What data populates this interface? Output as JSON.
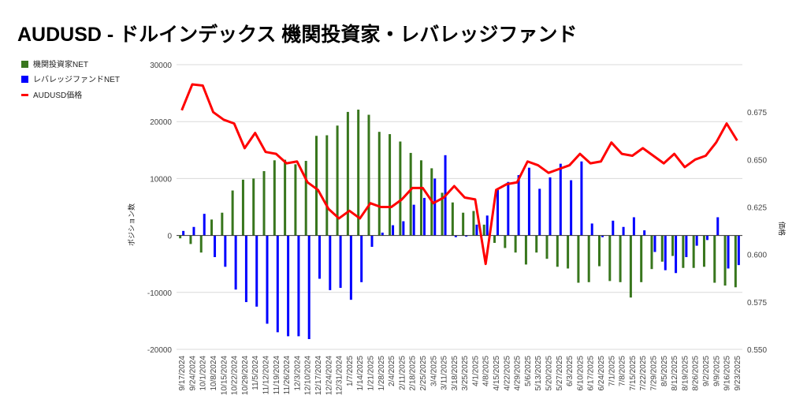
{
  "chart_data": {
    "type": "bar+line",
    "title": "AUDUSD - ドルインデックス 機関投資家・レバレッジファンド",
    "ylabel_left": "ポジション数",
    "ylabel_right": "価格",
    "ylim_left": [
      -20000,
      30000
    ],
    "yticks_left": [
      "30000",
      "20000",
      "10000",
      "0",
      "-10000",
      "-20000"
    ],
    "ylim_right": [
      0.55,
      0.7
    ],
    "yticks_right": [
      "0.675",
      "0.650",
      "0.625",
      "0.600",
      "0.575",
      "0.550"
    ],
    "legend_position": "top-left",
    "categories": [
      "9/17/2024",
      "9/24/2024",
      "10/1/2024",
      "10/8/2024",
      "10/15/2024",
      "10/22/2024",
      "10/29/2024",
      "11/5/2024",
      "11/12/2024",
      "11/19/2024",
      "11/26/2024",
      "12/3/2024",
      "12/10/2024",
      "12/17/2024",
      "12/24/2024",
      "12/31/2024",
      "1/7/2025",
      "1/14/2025",
      "1/21/2025",
      "1/28/2025",
      "2/4/2025",
      "2/11/2025",
      "2/18/2025",
      "2/25/2025",
      "3/4/2025",
      "3/11/2025",
      "3/18/2025",
      "3/25/2025",
      "4/1/2025",
      "4/8/2025",
      "4/15/2025",
      "4/22/2025",
      "4/29/2025",
      "5/6/2025",
      "5/13/2025",
      "5/20/2025",
      "5/27/2025",
      "6/3/2025",
      "6/10/2025",
      "6/17/2025",
      "6/24/2025",
      "7/1/2025",
      "7/8/2025",
      "7/15/2025",
      "7/22/2025",
      "7/29/2025",
      "8/5/2025",
      "8/12/2025",
      "8/19/2025",
      "8/26/2025",
      "9/2/2025",
      "9/9/2025",
      "9/16/2025",
      "9/23/2025"
    ],
    "series": [
      {
        "name": "機関投資家NET",
        "type": "bar",
        "axis": "left",
        "color": "#38761d",
        "values": [
          -500,
          -1500,
          -3000,
          2800,
          4000,
          7900,
          9800,
          10000,
          11300,
          13200,
          13300,
          12500,
          13100,
          17500,
          17600,
          19300,
          21700,
          22100,
          21200,
          18200,
          17800,
          16500,
          14500,
          13200,
          11800,
          7500,
          5800,
          4000,
          4300,
          1900,
          -1300,
          -2200,
          -3000,
          -5100,
          -3000,
          -4100,
          -5500,
          -5800,
          -8300,
          -8200,
          -5400,
          -8000,
          -8200,
          -10900,
          -8200,
          -5900,
          -4600,
          -3600,
          -5700,
          -5700,
          -5500,
          -8300,
          -8800,
          -9100
        ]
      },
      {
        "name": "レバレッジファンドNET",
        "type": "bar",
        "axis": "left",
        "color": "#0000ff",
        "values": [
          800,
          1500,
          3800,
          -3800,
          -5500,
          -9500,
          -11700,
          -12500,
          -15500,
          -17000,
          -17700,
          -17700,
          -18200,
          -7600,
          -9600,
          -9200,
          -11300,
          -8200,
          -2000,
          500,
          1800,
          2500,
          5400,
          6600,
          10000,
          14100,
          -300,
          -200,
          1900,
          3500,
          8000,
          9400,
          10600,
          11900,
          8200,
          10200,
          12600,
          9700,
          13000,
          2100,
          -300,
          2600,
          1500,
          3200,
          900,
          -2900,
          -6100,
          -6600,
          -3800,
          -1800,
          -800,
          3200,
          -5800,
          -5200
        ]
      },
      {
        "name": "AUDUSD価格",
        "type": "line",
        "axis": "right",
        "color": "#ff0000",
        "values": [
          0.676,
          0.6896,
          0.689,
          0.675,
          0.671,
          0.669,
          0.656,
          0.664,
          0.654,
          0.653,
          0.648,
          0.649,
          0.638,
          0.634,
          0.624,
          0.619,
          0.623,
          0.619,
          0.627,
          0.625,
          0.625,
          0.629,
          0.635,
          0.635,
          0.627,
          0.63,
          0.636,
          0.63,
          0.629,
          0.595,
          0.634,
          0.637,
          0.638,
          0.649,
          0.647,
          0.643,
          0.645,
          0.647,
          0.653,
          0.648,
          0.649,
          0.659,
          0.653,
          0.652,
          0.656,
          0.652,
          0.648,
          0.653,
          0.646,
          0.65,
          0.652,
          0.659,
          0.669,
          0.66
        ]
      }
    ]
  }
}
